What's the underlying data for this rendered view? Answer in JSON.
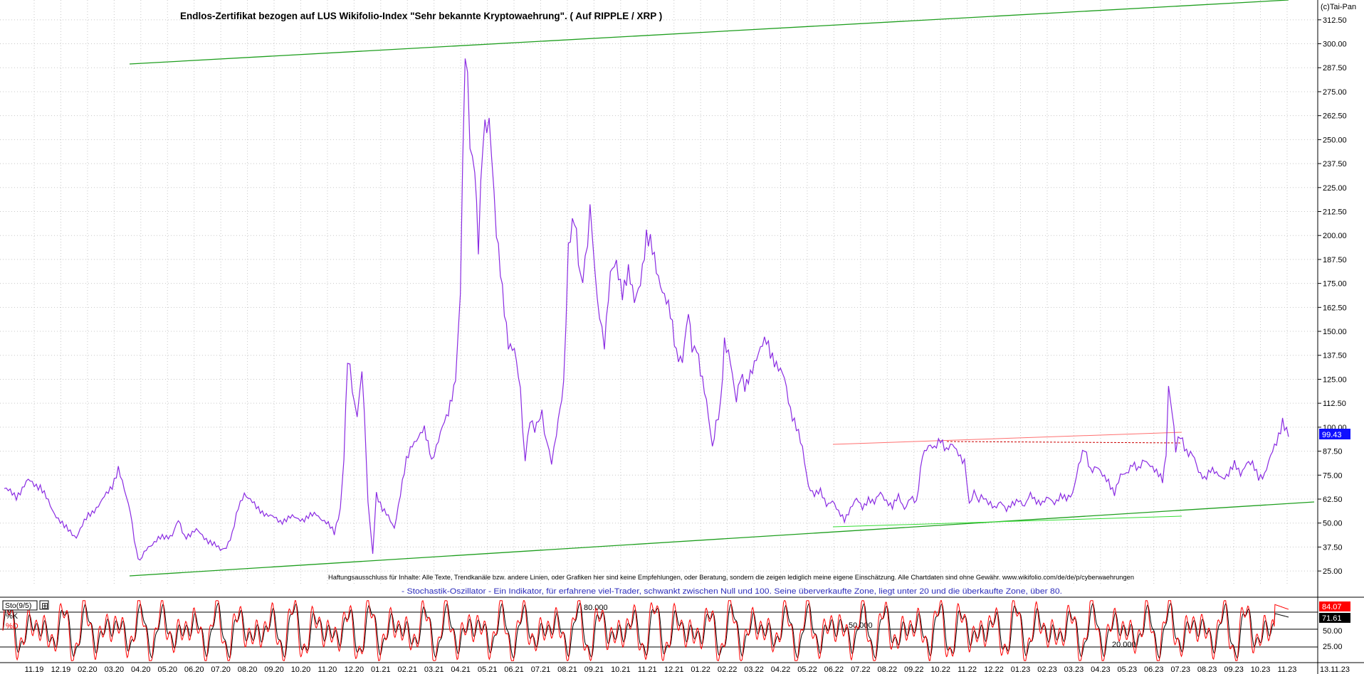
{
  "copyright": "(c)Tai-Pan",
  "main_chart": {
    "title": "Endlos-Zertifikat bezogen auf LUS Wikifolio-Index \"Sehr bekannte Kryptowaehrung\". ( Auf RIPPLE / XRP )",
    "disclaimer": "Haftungsausschluss für Inhalte: Alle Texte, Trendkanäle bzw. andere Linien, oder Grafiken hier sind keine Empfehlungen, oder Beratung, sondern die zeigen lediglich meine eigene Einschätzung. Alle Chartdaten sind ohne Gewähr. www.wikifolio.com/de/de/p/cyberwaehrungen",
    "subtitle": "- Stochastik-Oszillator - Ein Indikator, für erfahrene viel-Trader, schwankt zwischen Null und 100. Seine überverkaufte Zone, liegt unter 20 und die überkaufte Zone, über 80.",
    "last_value_label": "99.43",
    "colors": {
      "price": "#8a2be2",
      "trend": "#1e9e1e",
      "resistance": "#ff7070",
      "last_bg": "#1010ff"
    }
  },
  "indicator": {
    "name": "Sto(9/5)",
    "k_label": "%K",
    "d_label": "%D",
    "k_value_label": "84.07",
    "d_value_label": "71.61",
    "level_labels": [
      "80.000",
      "50.000",
      "20.000"
    ],
    "colors": {
      "k": "#ff0000",
      "d": "#000000"
    }
  },
  "chart_data": [
    {
      "type": "line",
      "title": "Endlos-Zertifikat bezogen auf LUS Wikifolio-Index \"Sehr bekannte Kryptowaehrung\". ( Auf RIPPLE / XRP )",
      "ylim": [
        18,
        318
      ],
      "y_ticks": [
        "312.50",
        "300.00",
        "287.50",
        "275.00",
        "262.50",
        "250.00",
        "237.50",
        "225.00",
        "212.50",
        "200.00",
        "187.50",
        "175.00",
        "162.50",
        "150.00",
        "137.50",
        "125.00",
        "112.50",
        "100.00",
        "87.50",
        "75.00",
        "62.50",
        "50.00",
        "37.50",
        "25.00"
      ],
      "x_ticks": [
        "11.19",
        "12.19",
        "02.20",
        "03.20",
        "04.20",
        "05.20",
        "06.20",
        "07.20",
        "08.20",
        "09.20",
        "10.20",
        "11.20",
        "12.20",
        "01.21",
        "02.21",
        "03.21",
        "04.21",
        "05.21",
        "06.21",
        "07.21",
        "08.21",
        "09.21",
        "10.21",
        "11.21",
        "12.21",
        "01.22",
        "02.22",
        "03.22",
        "04.22",
        "05.22",
        "06.22",
        "07.22",
        "08.22",
        "09.22",
        "10.22",
        "11.22",
        "12.22",
        "01.23",
        "02.23",
        "03.23",
        "04.23",
        "05.23",
        "06.23",
        "07.23",
        "08.23",
        "09.23",
        "10.23",
        "11.23",
        "13.11.23"
      ],
      "series": [
        {
          "values": [
            [
              0,
              68
            ],
            [
              1,
              64
            ],
            [
              2,
              72
            ],
            [
              3,
              69
            ],
            [
              4,
              57
            ],
            [
              5,
              48
            ],
            [
              6,
              43
            ],
            [
              7,
              54
            ],
            [
              8,
              60
            ],
            [
              9,
              70
            ],
            [
              9.5,
              78
            ],
            [
              10,
              67
            ],
            [
              10.5,
              57
            ],
            [
              11,
              35
            ],
            [
              11.3,
              30
            ],
            [
              12,
              38
            ],
            [
              13,
              42
            ],
            [
              14,
              44
            ],
            [
              14.5,
              51
            ],
            [
              15,
              43
            ],
            [
              16,
              46
            ],
            [
              17,
              41
            ],
            [
              18,
              36
            ],
            [
              18.5,
              38
            ],
            [
              19,
              44
            ],
            [
              19.5,
              58
            ],
            [
              20,
              66
            ],
            [
              21,
              58
            ],
            [
              22,
              54
            ],
            [
              23,
              51
            ],
            [
              24,
              53
            ],
            [
              25,
              52
            ],
            [
              26,
              55
            ],
            [
              27,
              49
            ],
            [
              27.5,
              45
            ],
            [
              28,
              58
            ],
            [
              28.3,
              85
            ],
            [
              28.6,
              138
            ],
            [
              29,
              120
            ],
            [
              29.4,
              105
            ],
            [
              29.8,
              130
            ],
            [
              30,
              108
            ],
            [
              30.3,
              60
            ],
            [
              30.7,
              35
            ],
            [
              31,
              66
            ],
            [
              31.5,
              57
            ],
            [
              32,
              53
            ],
            [
              32.5,
              48
            ],
            [
              33,
              65
            ],
            [
              33.5,
              82
            ],
            [
              34,
              92
            ],
            [
              35,
              98
            ],
            [
              35.6,
              82
            ],
            [
              36,
              90
            ],
            [
              37,
              108
            ],
            [
              37.6,
              125
            ],
            [
              38,
              170
            ],
            [
              38.4,
              302
            ],
            [
              38.8,
              250
            ],
            [
              39.2,
              232
            ],
            [
              39.5,
              192
            ],
            [
              39.9,
              255
            ],
            [
              40.2,
              262
            ],
            [
              40.6,
              245
            ],
            [
              41,
              200
            ],
            [
              41.5,
              170
            ],
            [
              42,
              145
            ],
            [
              42.5,
              140
            ],
            [
              43,
              118
            ],
            [
              43.4,
              82
            ],
            [
              43.8,
              105
            ],
            [
              44.2,
              98
            ],
            [
              44.8,
              106
            ],
            [
              45.2,
              92
            ],
            [
              45.6,
              82
            ],
            [
              46,
              96
            ],
            [
              46.6,
              120
            ],
            [
              47,
              195
            ],
            [
              47.5,
              207
            ],
            [
              48,
              178
            ],
            [
              48.4,
              183
            ],
            [
              48.8,
              215
            ],
            [
              49.2,
              182
            ],
            [
              49.6,
              156
            ],
            [
              50,
              145
            ],
            [
              50.5,
              178
            ],
            [
              51,
              185
            ],
            [
              51.5,
              172
            ],
            [
              52,
              180
            ],
            [
              52.5,
              165
            ],
            [
              53,
              178
            ],
            [
              53.5,
              198
            ],
            [
              54,
              192
            ],
            [
              54.5,
              180
            ],
            [
              55,
              168
            ],
            [
              55.5,
              158
            ],
            [
              56,
              140
            ],
            [
              56.5,
              135
            ],
            [
              57,
              158
            ],
            [
              57.3,
              140
            ],
            [
              57.7,
              142
            ],
            [
              58,
              130
            ],
            [
              58.5,
              112
            ],
            [
              59,
              90
            ],
            [
              59.3,
              102
            ],
            [
              59.7,
              112
            ],
            [
              60,
              142
            ],
            [
              60.5,
              135
            ],
            [
              61,
              115
            ],
            [
              61.3,
              128
            ],
            [
              61.7,
              120
            ],
            [
              62,
              125
            ],
            [
              62.5,
              135
            ],
            [
              63,
              140
            ],
            [
              63.5,
              145
            ],
            [
              64,
              138
            ],
            [
              64.5,
              130
            ],
            [
              65,
              125
            ],
            [
              65.5,
              110
            ],
            [
              66,
              100
            ],
            [
              66.5,
              88
            ],
            [
              67,
              70
            ],
            [
              67.5,
              65
            ],
            [
              68,
              66
            ],
            [
              68.5,
              60
            ],
            [
              69,
              62
            ],
            [
              69.5,
              55
            ],
            [
              70,
              52
            ],
            [
              70.5,
              58
            ],
            [
              71,
              62
            ],
            [
              71.5,
              58
            ],
            [
              72,
              63
            ],
            [
              72.5,
              60
            ],
            [
              73,
              66
            ],
            [
              73.5,
              62
            ],
            [
              74,
              58
            ],
            [
              74.5,
              64
            ],
            [
              75,
              58
            ],
            [
              75.5,
              63
            ],
            [
              76,
              60
            ],
            [
              76.5,
              87
            ],
            [
              77,
              90
            ],
            [
              77.5,
              88
            ],
            [
              78,
              95
            ],
            [
              78.5,
              88
            ],
            [
              79,
              90
            ],
            [
              79.5,
              87
            ],
            [
              80,
              82
            ],
            [
              80.4,
              60
            ],
            [
              80.8,
              66
            ],
            [
              81.2,
              62
            ],
            [
              81.6,
              64
            ],
            [
              82,
              60
            ],
            [
              82.5,
              58
            ],
            [
              83,
              62
            ],
            [
              83.5,
              56
            ],
            [
              84,
              60
            ],
            [
              84.5,
              63
            ],
            [
              85,
              58
            ],
            [
              85.5,
              65
            ],
            [
              86,
              62
            ],
            [
              86.5,
              60
            ],
            [
              87,
              63
            ],
            [
              87.5,
              61
            ],
            [
              88,
              64
            ],
            [
              88.5,
              62
            ],
            [
              89,
              66
            ],
            [
              89.5,
              80
            ],
            [
              90,
              88
            ],
            [
              90.5,
              78
            ],
            [
              91,
              80
            ],
            [
              91.5,
              74
            ],
            [
              92,
              72
            ],
            [
              92.5,
              66
            ],
            [
              93,
              74
            ],
            [
              93.5,
              76
            ],
            [
              94,
              82
            ],
            [
              94.5,
              77
            ],
            [
              95,
              83
            ],
            [
              95.5,
              81
            ],
            [
              96,
              76
            ],
            [
              96.5,
              72
            ],
            [
              96.8,
              85
            ],
            [
              97,
              122
            ],
            [
              97.3,
              110
            ],
            [
              97.6,
              90
            ],
            [
              98,
              95
            ],
            [
              98.5,
              88
            ],
            [
              99,
              86
            ],
            [
              99.5,
              76
            ],
            [
              100,
              74
            ],
            [
              100.5,
              78
            ],
            [
              101,
              75
            ],
            [
              101.5,
              74
            ],
            [
              102,
              76
            ],
            [
              102.5,
              80
            ],
            [
              103,
              76
            ],
            [
              103.5,
              82
            ],
            [
              104,
              80
            ],
            [
              104.5,
              74
            ],
            [
              105,
              76
            ],
            [
              105.5,
              84
            ],
            [
              106,
              92
            ],
            [
              106.5,
              104
            ],
            [
              107,
              95
            ]
          ]
        }
      ]
    },
    {
      "type": "line",
      "title": "Sto(9/5)",
      "ylim": [
        0,
        100
      ],
      "y_ticks": [
        "84.07",
        "71.61",
        "50.00",
        "25.00"
      ],
      "series": [
        {
          "name": "%K",
          "last": 84.07
        },
        {
          "name": "%D",
          "last": 71.61
        }
      ]
    }
  ]
}
